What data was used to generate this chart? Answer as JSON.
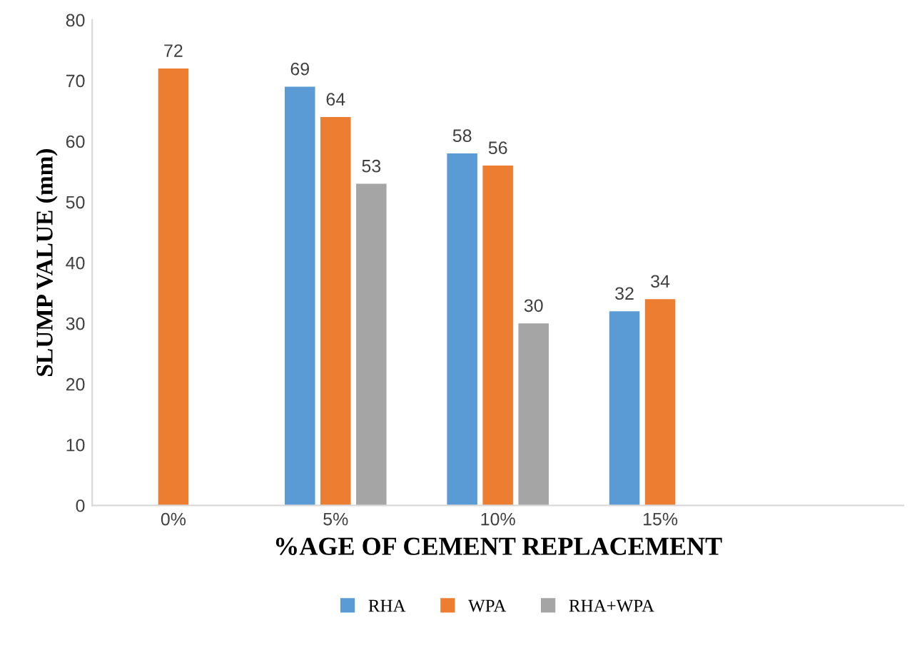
{
  "chart_data": {
    "type": "bar",
    "xlabel": "%AGE OF CEMENT REPLACEMENT",
    "ylabel": "SLUMP VALUE (mm)",
    "categories": [
      "0%",
      "5%",
      "10%",
      "15%",
      null
    ],
    "series": [
      {
        "name": "RHA",
        "color": "#5b9bd5",
        "values": [
          null,
          69,
          58,
          32,
          null
        ]
      },
      {
        "name": "WPA",
        "color": "#ed7d31",
        "values": [
          72,
          64,
          56,
          34,
          null
        ]
      },
      {
        "name": "RHA+WPA",
        "color": "#a5a5a5",
        "values": [
          null,
          53,
          30,
          null,
          null
        ]
      }
    ],
    "ylim": [
      0,
      80
    ],
    "yticks": [
      0,
      10,
      20,
      30,
      40,
      50,
      60,
      70,
      80
    ],
    "grid": false,
    "legend": "bottom",
    "data_labels": true
  }
}
